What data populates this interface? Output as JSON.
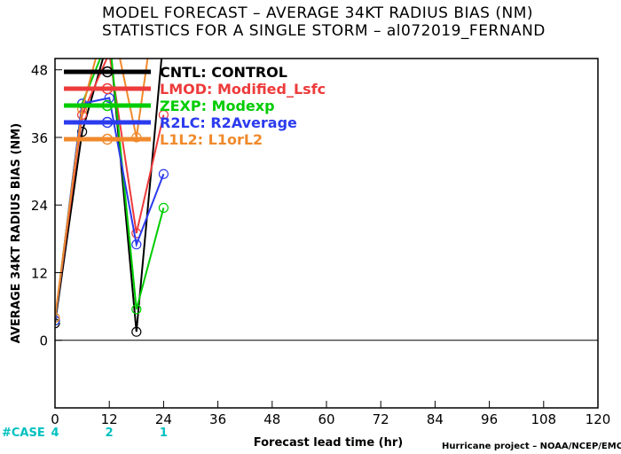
{
  "chart_data": {
    "type": "line",
    "title": "MODEL FORECAST – AVERAGE 34KT RADIUS BIAS (NM)",
    "subtitle": "STATISTICS FOR A SINGLE STORM – al072019_FERNAND",
    "xlabel": "Forecast lead time (hr)",
    "ylabel": "AVERAGE 34KT RADIUS BIAS (NM)",
    "xlim": [
      0,
      120
    ],
    "ylim": [
      -12,
      50
    ],
    "x_ticks": [
      0,
      12,
      24,
      36,
      48,
      60,
      72,
      84,
      96,
      108,
      120
    ],
    "y_ticks": [
      0,
      12,
      24,
      36,
      48
    ],
    "zero_line": true,
    "grid": false,
    "legend_position": "top-left",
    "series": [
      {
        "name": "CNTL: CONTROL",
        "color": "#000000",
        "x": [
          0,
          6,
          12,
          18,
          24
        ],
        "y": [
          3,
          37,
          54,
          1.5,
          54
        ]
      },
      {
        "name": "LMOD: Modified_Lsfc",
        "color": "#ee3b3b",
        "x": [
          0,
          6,
          12,
          18,
          24
        ],
        "y": [
          3.5,
          40,
          51,
          19,
          40
        ]
      },
      {
        "name": "ZEXP: Modexp",
        "color": "#00cc00",
        "x": [
          0,
          6,
          12,
          18,
          24
        ],
        "y": [
          3.5,
          42,
          54,
          5.5,
          23.5
        ]
      },
      {
        "name": "R2LC: R2Average",
        "color": "#2b3bee",
        "x": [
          0,
          6,
          12,
          18,
          24
        ],
        "y": [
          3.5,
          42,
          43,
          17,
          29.5
        ]
      },
      {
        "name": "L1L2: L1orL2",
        "color": "#f08a2c",
        "x": [
          0,
          6,
          12,
          18,
          24
        ],
        "y": [
          4,
          41,
          59,
          36,
          70
        ]
      }
    ],
    "case_label": "#CASE",
    "case_color": "#00c0c0",
    "cases": [
      {
        "x": 0,
        "n": "4"
      },
      {
        "x": 12,
        "n": "2"
      },
      {
        "x": 24,
        "n": "1"
      }
    ],
    "credit": "Hurricane project – NOAA/NCEP/EMC"
  }
}
